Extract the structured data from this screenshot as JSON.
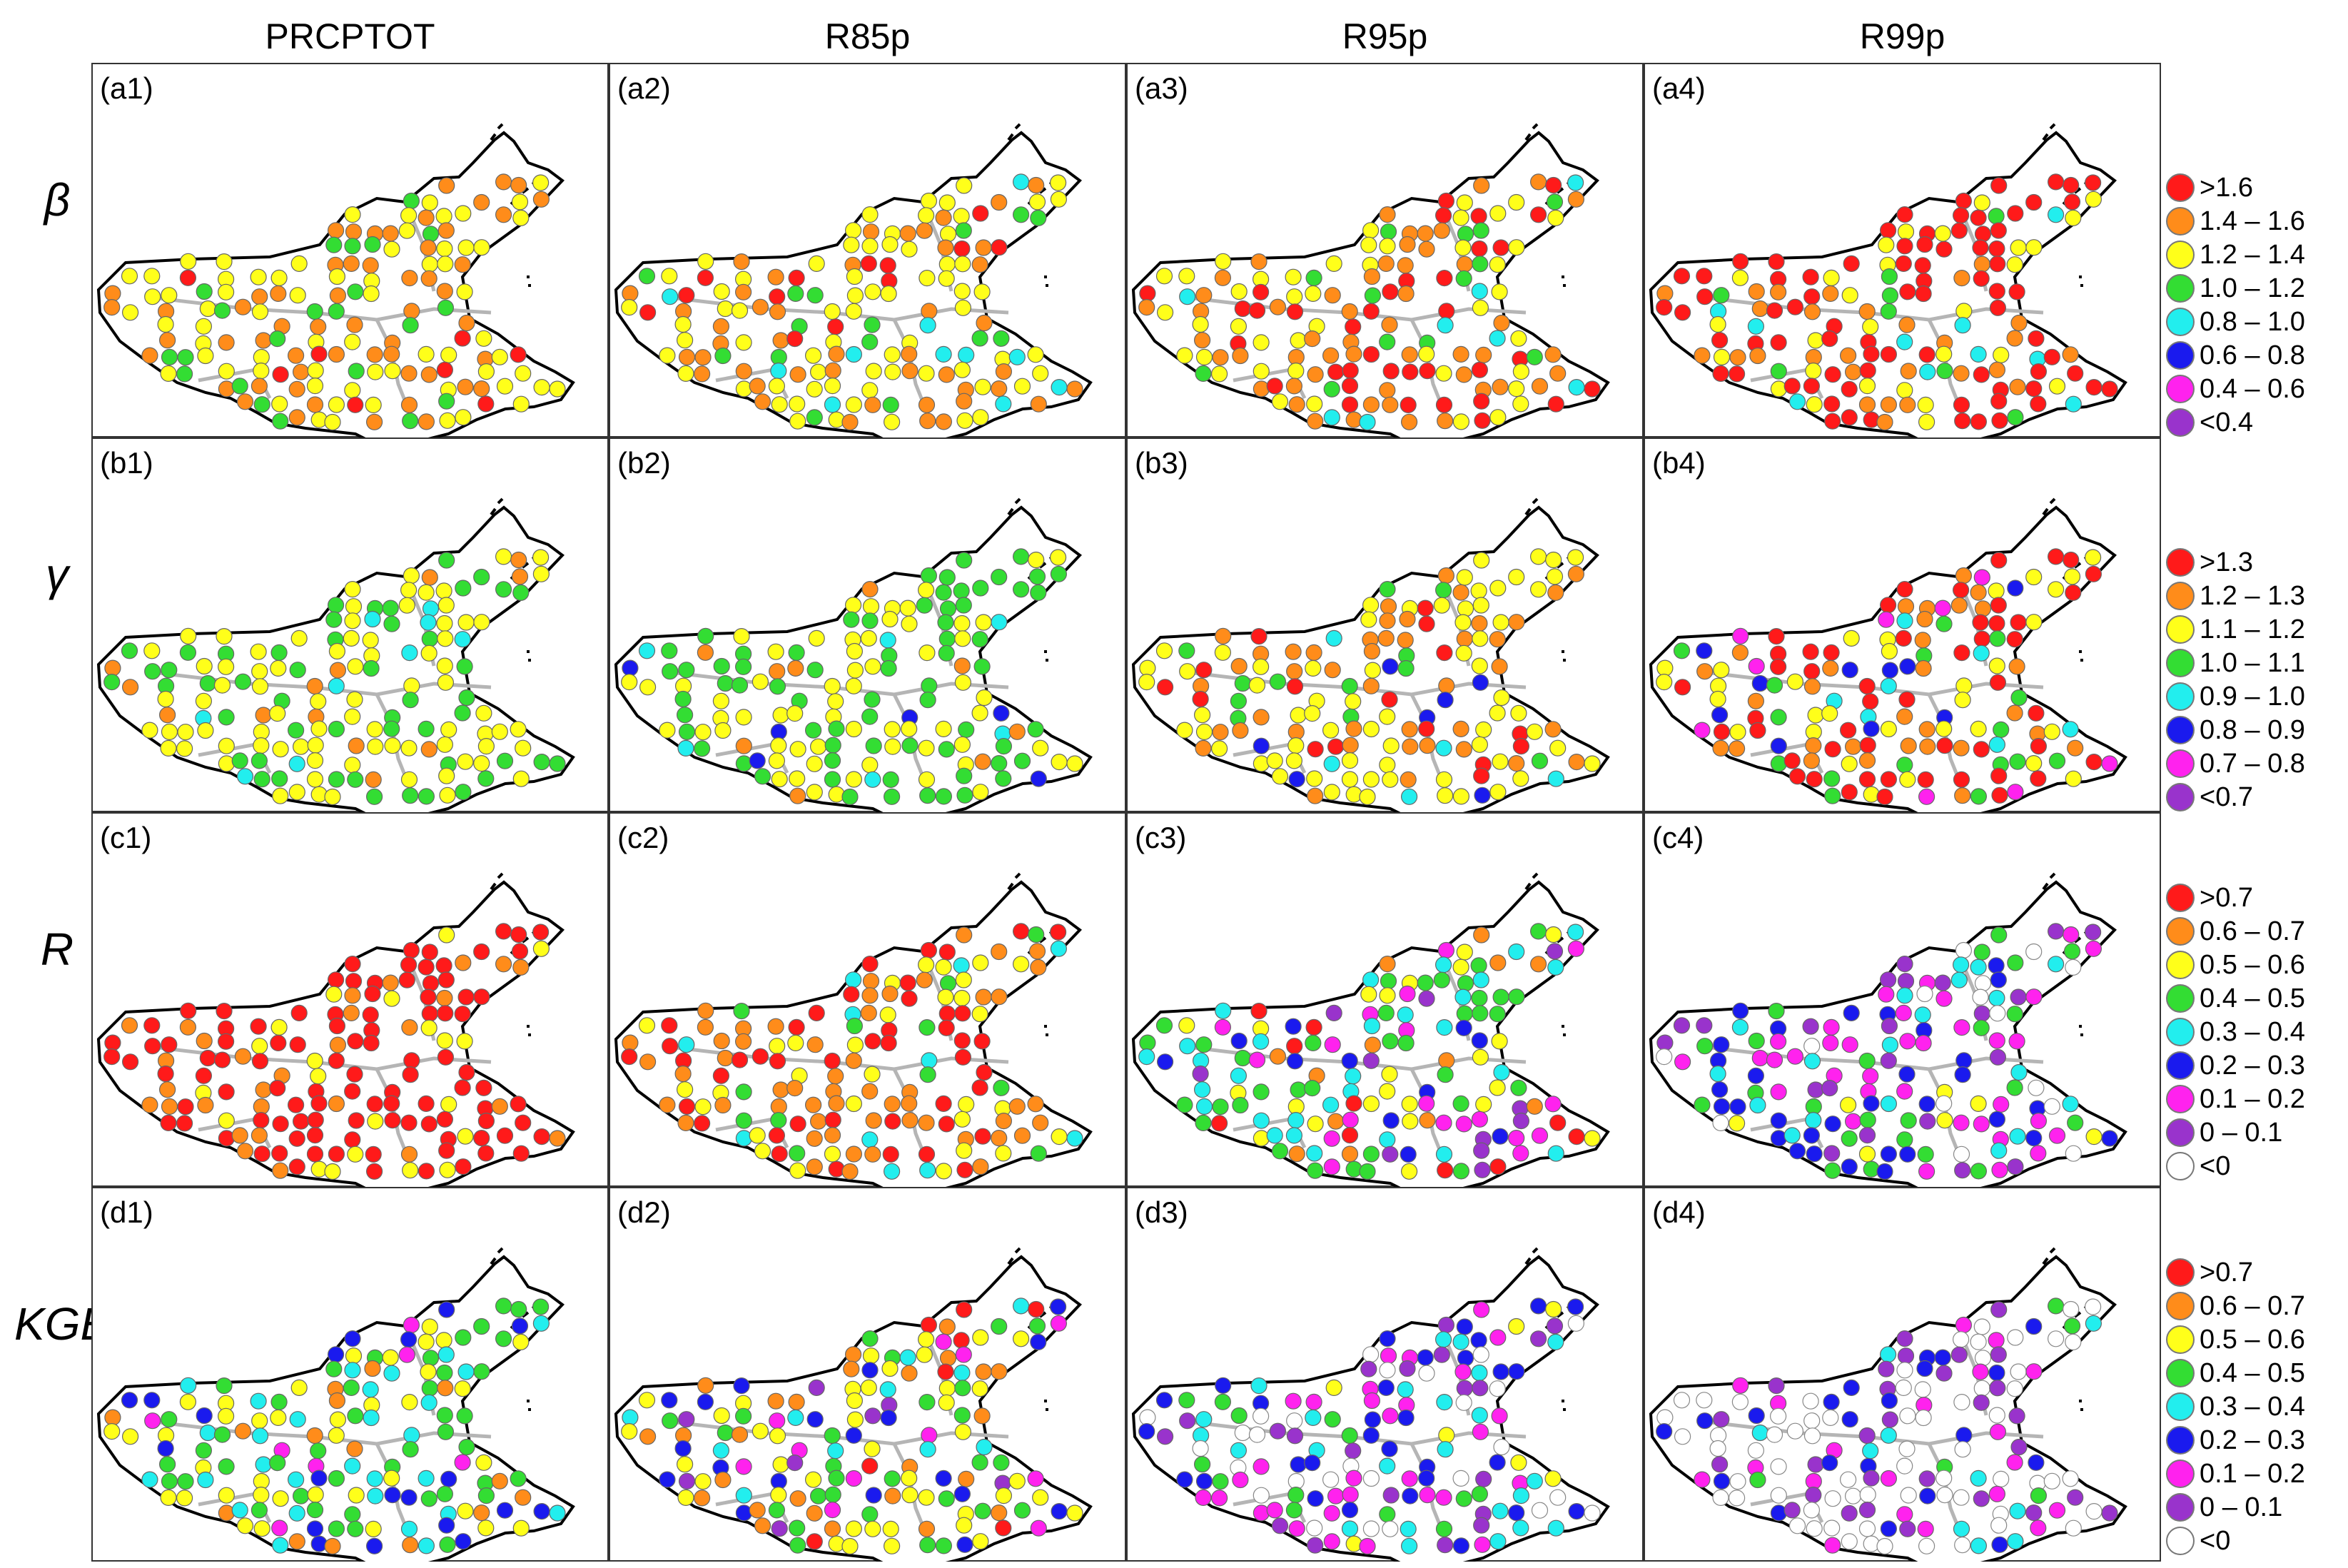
{
  "columns": [
    "PRCPTOT",
    "R85p",
    "R95p",
    "R99p"
  ],
  "rows": [
    {
      "symbol": "β",
      "panels": [
        "(a1)",
        "(a2)",
        "(a3)",
        "(a4)"
      ]
    },
    {
      "symbol": "γ",
      "panels": [
        "(b1)",
        "(b2)",
        "(b3)",
        "(b4)"
      ]
    },
    {
      "symbol": "R",
      "panels": [
        "(c1)",
        "(c2)",
        "(c3)",
        "(c4)"
      ]
    },
    {
      "symbol": "KGE",
      "panels": [
        "(d1)",
        "(d2)",
        "(d3)",
        "(d4)"
      ]
    }
  ],
  "legends": [
    {
      "items": [
        {
          "label": ">1.6",
          "color": "#ff1a1a"
        },
        {
          "label": "1.4 – 1.6",
          "color": "#ff8c1a"
        },
        {
          "label": "1.2 – 1.4",
          "color": "#ffff1a"
        },
        {
          "label": "1.0 – 1.2",
          "color": "#33dd33"
        },
        {
          "label": "0.8 – 1.0",
          "color": "#22eeee"
        },
        {
          "label": "0.6 – 0.8",
          "color": "#1a1aee"
        },
        {
          "label": "0.4 – 0.6",
          "color": "#ff22ee"
        },
        {
          "label": "<0.4",
          "color": "#9933cc"
        }
      ]
    },
    {
      "items": [
        {
          "label": ">1.3",
          "color": "#ff1a1a"
        },
        {
          "label": "1.2 – 1.3",
          "color": "#ff8c1a"
        },
        {
          "label": "1.1 – 1.2",
          "color": "#ffff1a"
        },
        {
          "label": "1.0 – 1.1",
          "color": "#33dd33"
        },
        {
          "label": "0.9 – 1.0",
          "color": "#22eeee"
        },
        {
          "label": "0.8 – 0.9",
          "color": "#1a1aee"
        },
        {
          "label": "0.7 – 0.8",
          "color": "#ff22ee"
        },
        {
          "label": "<0.7",
          "color": "#9933cc"
        }
      ]
    },
    {
      "items": [
        {
          "label": ">0.7",
          "color": "#ff1a1a"
        },
        {
          "label": "0.6 – 0.7",
          "color": "#ff8c1a"
        },
        {
          "label": "0.5 – 0.6",
          "color": "#ffff1a"
        },
        {
          "label": "0.4 – 0.5",
          "color": "#33dd33"
        },
        {
          "label": "0.3 – 0.4",
          "color": "#22eeee"
        },
        {
          "label": "0.2 – 0.3",
          "color": "#1a1aee"
        },
        {
          "label": "0.1 – 0.2",
          "color": "#ff22ee"
        },
        {
          "label": "0 – 0.1",
          "color": "#9933cc"
        },
        {
          "label": "<0",
          "color": "#ffffff"
        }
      ]
    },
    {
      "items": [
        {
          "label": ">0.7",
          "color": "#ff1a1a"
        },
        {
          "label": "0.6 – 0.7",
          "color": "#ff8c1a"
        },
        {
          "label": "0.5 – 0.6",
          "color": "#ffff1a"
        },
        {
          "label": "0.4 – 0.5",
          "color": "#33dd33"
        },
        {
          "label": "0.3 – 0.4",
          "color": "#22eeee"
        },
        {
          "label": "0.2 – 0.3",
          "color": "#1a1aee"
        },
        {
          "label": "0.1 – 0.2",
          "color": "#ff22ee"
        },
        {
          "label": "0 – 0.1",
          "color": "#9933cc"
        },
        {
          "label": "<0",
          "color": "#ffffff"
        }
      ]
    }
  ],
  "panel_weights": [
    [
      [
        1,
        6,
        8,
        2,
        0,
        0,
        0,
        0
      ],
      [
        1,
        5,
        9,
        2,
        1,
        0,
        0,
        0
      ],
      [
        5,
        6,
        3,
        2,
        1,
        0,
        0,
        0
      ],
      [
        8,
        5,
        3,
        1,
        1,
        0,
        0,
        0
      ]
    ],
    [
      [
        0,
        1,
        9,
        6,
        1,
        0,
        0,
        0
      ],
      [
        0,
        1,
        8,
        7,
        1,
        1,
        0,
        0
      ],
      [
        2,
        6,
        8,
        2,
        1,
        1,
        0,
        0
      ],
      [
        6,
        5,
        5,
        2,
        1,
        1,
        1,
        0
      ]
    ],
    [
      [
        11,
        3,
        1,
        0,
        0,
        0,
        0,
        0,
        0
      ],
      [
        6,
        6,
        3,
        1,
        1,
        0,
        0,
        0,
        0
      ],
      [
        1,
        2,
        4,
        5,
        4,
        2,
        2,
        1,
        0
      ],
      [
        0,
        0,
        1,
        3,
        4,
        4,
        4,
        4,
        2
      ]
    ],
    [
      [
        0,
        2,
        5,
        5,
        3,
        2,
        1,
        0,
        0
      ],
      [
        1,
        2,
        4,
        4,
        3,
        2,
        1,
        1,
        0
      ],
      [
        0,
        0,
        1,
        2,
        3,
        3,
        4,
        3,
        3
      ],
      [
        0,
        0,
        0,
        1,
        1,
        2,
        3,
        4,
        8
      ]
    ]
  ]
}
